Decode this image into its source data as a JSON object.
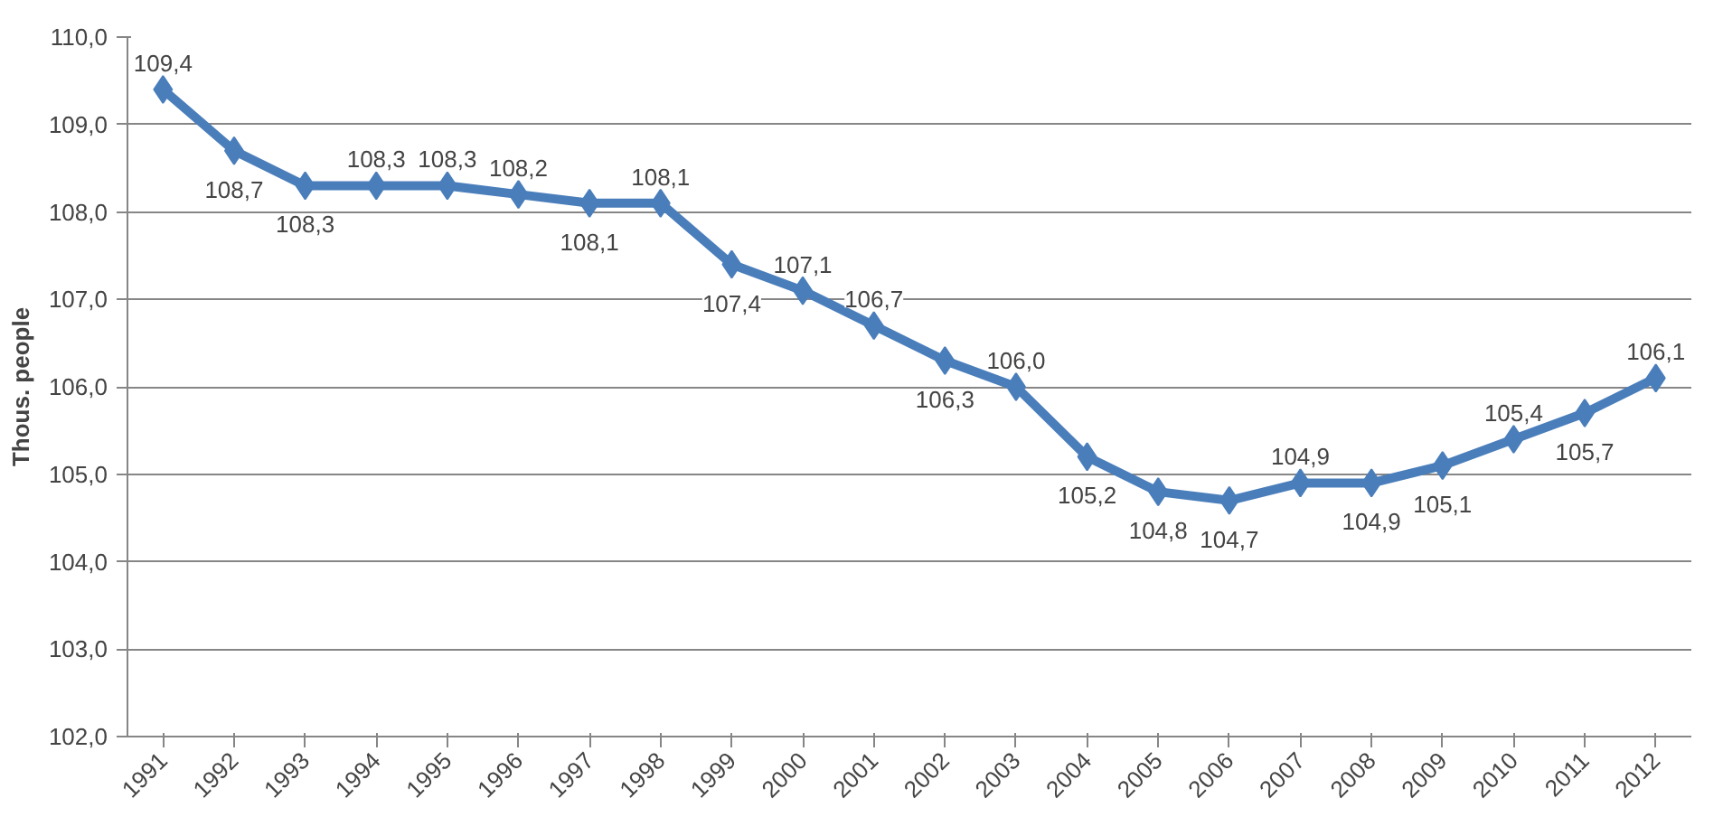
{
  "chart_data": {
    "type": "line",
    "ylabel": "Thous. people",
    "categories": [
      "1991",
      "1992",
      "1993",
      "1994",
      "1995",
      "1996",
      "1997",
      "1998",
      "1999",
      "2000",
      "2001",
      "2002",
      "2003",
      "2004",
      "2005",
      "2006",
      "2007",
      "2008",
      "2009",
      "2010",
      "2011",
      "2012"
    ],
    "series": [
      {
        "color": "#4a7ebb",
        "values": [
          109.4,
          108.7,
          108.3,
          108.3,
          108.3,
          108.2,
          108.1,
          108.1,
          107.4,
          107.1,
          106.7,
          106.3,
          106.0,
          105.2,
          104.8,
          104.7,
          104.9,
          104.9,
          105.1,
          105.4,
          105.7,
          106.1
        ],
        "value_labels": [
          "109,4",
          "108,7",
          "108,3",
          "108,3",
          "108,3",
          "108,2",
          "108,1",
          "108,1",
          "107,4",
          "107,1",
          "106,7",
          "106,3",
          "106,0",
          "105,2",
          "104,8",
          "104,7",
          "104,9",
          "104,9",
          "105,1",
          "105,4",
          "105,7",
          "106,1"
        ]
      }
    ],
    "ylim": [
      102,
      110
    ],
    "yticks": [
      {
        "value": 102,
        "label": "102,0"
      },
      {
        "value": 103,
        "label": "103,0"
      },
      {
        "value": 104,
        "label": "104,0"
      },
      {
        "value": 105,
        "label": "105,0"
      },
      {
        "value": 106,
        "label": "106,0"
      },
      {
        "value": 107,
        "label": "107,0"
      },
      {
        "value": 108,
        "label": "108,0"
      },
      {
        "value": 109,
        "label": "109,0"
      },
      {
        "value": 110,
        "label": "110,0"
      }
    ],
    "grid": "y",
    "marker": "diamond",
    "line_style": "solid"
  }
}
